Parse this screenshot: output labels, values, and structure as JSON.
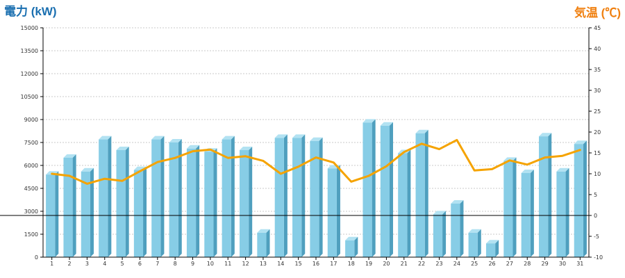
{
  "chart_data": {
    "type": "bar+line",
    "left_axis_title": "電力 (kW)",
    "right_axis_title": "気温 (℃)",
    "colors": {
      "left_title": "#1a6fb0",
      "right_title": "#f08010",
      "bar_front": "#87cde6",
      "bar_side": "#4f9fbe",
      "bar_top": "#b2e2f2",
      "line": "#f5a300",
      "grid": "#c8c8c8",
      "axis": "#000000"
    },
    "grid": true,
    "left_axis": {
      "min": 0,
      "max": 15000,
      "ticks": [
        "0",
        "1500",
        "3000",
        "4500",
        "6000",
        "7500",
        "9000",
        "10500",
        "12000",
        "13500",
        "15000"
      ]
    },
    "right_axis": {
      "min": -10,
      "max": 45,
      "ticks": [
        "-10",
        "-5",
        "0",
        "5",
        "10",
        "15",
        "20",
        "25",
        "30",
        "35",
        "40",
        "45"
      ]
    },
    "categories": [
      "1",
      "2",
      "3",
      "4",
      "5",
      "6",
      "7",
      "8",
      "9",
      "10",
      "11",
      "12",
      "13",
      "14",
      "15",
      "16",
      "17",
      "18",
      "19",
      "20",
      "21",
      "22",
      "23",
      "24",
      "25",
      "26",
      "27",
      "28",
      "29",
      "30",
      "31"
    ],
    "power_kw": [
      5400,
      6500,
      5600,
      7700,
      7000,
      5700,
      7700,
      7500,
      7100,
      6900,
      7700,
      7000,
      1600,
      7800,
      7800,
      7600,
      5800,
      1100,
      8800,
      8600,
      6800,
      8100,
      2800,
      3500,
      1600,
      900,
      6300,
      5500,
      7900,
      5600,
      7400
    ],
    "temperature_c": [
      10,
      9.5,
      7.6,
      8.8,
      8.3,
      10.6,
      12.8,
      13.8,
      15.4,
      15.8,
      13.8,
      14.2,
      13.1,
      10,
      11.7,
      13.9,
      12.7,
      8.1,
      9.5,
      11.8,
      15.2,
      17.2,
      15.9,
      18.1,
      10.8,
      11.1,
      13.2,
      12.2,
      13.9,
      14.3,
      15.7
    ]
  }
}
